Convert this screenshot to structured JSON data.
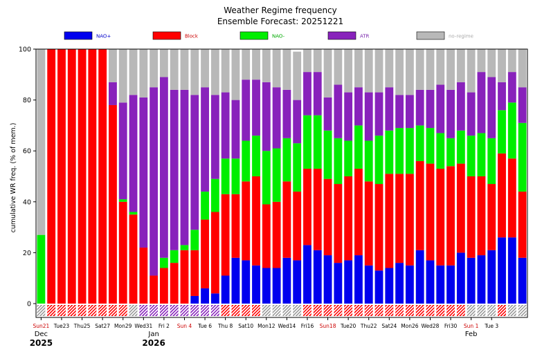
{
  "chart_data": {
    "type": "bar",
    "stacked": true,
    "title": "Weather Regime frequency",
    "subtitle": "Ensemble Forecast: 20251221",
    "ylabel": "cumulative WR freq. (% of mem.)",
    "xlabel": "",
    "ylim": [
      0,
      100
    ],
    "yticks": [
      0,
      20,
      40,
      60,
      80,
      100
    ],
    "legend_position": "top",
    "series": [
      {
        "name": "NAO+",
        "color": "#0000ee",
        "label_color": "#0000cc",
        "values": [
          0,
          0,
          0,
          0,
          0,
          0,
          0,
          0,
          0,
          0,
          0,
          0,
          0,
          0,
          0,
          3,
          6,
          4,
          11,
          18,
          17,
          15,
          14,
          14,
          18,
          17,
          23,
          21,
          19,
          16,
          17,
          19,
          15,
          13,
          14,
          16,
          15,
          21,
          17,
          15,
          15,
          20,
          18,
          19,
          21,
          26,
          26,
          18
        ]
      },
      {
        "name": "Block",
        "color": "#ff0000",
        "label_color": "#cc0000",
        "values": [
          0,
          100,
          100,
          100,
          100,
          100,
          100,
          78,
          40,
          35,
          22,
          11,
          14,
          16,
          21,
          18,
          27,
          32,
          32,
          25,
          31,
          35,
          25,
          26,
          30,
          27,
          30,
          32,
          30,
          31,
          33,
          34,
          33,
          34,
          37,
          35,
          36,
          35,
          38,
          38,
          39,
          35,
          32,
          31,
          26,
          33,
          31,
          26
        ]
      },
      {
        "name": "NAO-",
        "color": "#00ee00",
        "label_color": "#00aa00",
        "values": [
          27,
          0,
          0,
          0,
          0,
          0,
          0,
          0,
          1,
          1,
          0,
          0,
          4,
          5,
          2,
          8,
          11,
          13,
          14,
          14,
          16,
          16,
          21,
          21,
          17,
          19,
          21,
          21,
          19,
          18,
          14,
          17,
          16,
          19,
          17,
          18,
          18,
          14,
          14,
          14,
          11,
          13,
          16,
          17,
          18,
          17,
          22,
          27
        ]
      },
      {
        "name": "ATR",
        "color": "#8822bb",
        "label_color": "#7722aa",
        "values": [
          0,
          0,
          0,
          0,
          0,
          0,
          0,
          9,
          38,
          46,
          59,
          74,
          71,
          63,
          61,
          53,
          41,
          33,
          26,
          23,
          24,
          22,
          27,
          24,
          19,
          17,
          17,
          17,
          13,
          21,
          19,
          15,
          19,
          17,
          17,
          13,
          13,
          14,
          15,
          19,
          19,
          19,
          17,
          24,
          24,
          11,
          12,
          14
        ]
      },
      {
        "name": "no-regime",
        "color": "#b8b8b8",
        "label_color": "#aaaaaa",
        "values": [
          73,
          0,
          0,
          0,
          0,
          0,
          0,
          13,
          21,
          18,
          19,
          15,
          11,
          16,
          16,
          18,
          15,
          18,
          17,
          20,
          12,
          12,
          13,
          15,
          16,
          19,
          9,
          9,
          19,
          14,
          17,
          15,
          17,
          17,
          15,
          18,
          18,
          16,
          16,
          14,
          16,
          13,
          17,
          9,
          11,
          13,
          9,
          15
        ]
      }
    ],
    "day_bar_colors": [
      "#999999",
      "#ff0000",
      "#ff0000",
      "#ff0000",
      "#ff0000",
      "#ff0000",
      "#ff0000",
      "#ff0000",
      "#ff0000",
      "#999999",
      "#8822bb",
      "#8822bb",
      "#8822bb",
      "#8822bb",
      "#8822bb",
      "#8822bb",
      "#8822bb",
      "#8822bb",
      "#ff0000",
      "#ff0000",
      "#ff0000",
      "#ff0000",
      "#999999",
      "#999999",
      "#999999",
      "#999999",
      "#ff0000",
      "#ff0000",
      "#ff0000",
      "#ff0000",
      "#ff0000",
      "#ff0000",
      "#ff0000",
      "#ff0000",
      "#ff0000",
      "#ff0000",
      "#ff0000",
      "#ff0000",
      "#ff0000",
      "#ff0000",
      "#ff0000",
      "#ff0000",
      "#999999",
      "#999999",
      "#999999",
      "#ff0000",
      "#999999",
      "#999999"
    ],
    "x_ticks": [
      {
        "index": 0,
        "label": "Sun21",
        "color": "#cc0000"
      },
      {
        "index": 2,
        "label": "Tue23",
        "color": "#000000"
      },
      {
        "index": 4,
        "label": "Thu25",
        "color": "#000000"
      },
      {
        "index": 6,
        "label": "Sat27",
        "color": "#000000"
      },
      {
        "index": 8,
        "label": "Mon29",
        "color": "#000000"
      },
      {
        "index": 10,
        "label": "Wed31",
        "color": "#000000"
      },
      {
        "index": 12,
        "label": "Fri 2",
        "color": "#000000"
      },
      {
        "index": 14,
        "label": "Sun 4",
        "color": "#cc0000"
      },
      {
        "index": 16,
        "label": "Tue 6",
        "color": "#000000"
      },
      {
        "index": 18,
        "label": "Thu 8",
        "color": "#000000"
      },
      {
        "index": 20,
        "label": "Sat10",
        "color": "#000000"
      },
      {
        "index": 22,
        "label": "Mon12",
        "color": "#000000"
      },
      {
        "index": 24,
        "label": "Wed14",
        "color": "#000000"
      },
      {
        "index": 26,
        "label": "Fri16",
        "color": "#000000"
      },
      {
        "index": 28,
        "label": "Sun18",
        "color": "#cc0000"
      },
      {
        "index": 30,
        "label": "Tue20",
        "color": "#000000"
      },
      {
        "index": 32,
        "label": "Thu22",
        "color": "#000000"
      },
      {
        "index": 34,
        "label": "Sat24",
        "color": "#000000"
      },
      {
        "index": 36,
        "label": "Mon26",
        "color": "#000000"
      },
      {
        "index": 38,
        "label": "Wed28",
        "color": "#000000"
      },
      {
        "index": 40,
        "label": "Fri30",
        "color": "#000000"
      },
      {
        "index": 42,
        "label": "Sun 1",
        "color": "#cc0000"
      },
      {
        "index": 44,
        "label": "Tue 3",
        "color": "#000000"
      }
    ],
    "month_labels": [
      {
        "index": 0,
        "label": "Dec",
        "year": "2025"
      },
      {
        "index": 11,
        "label": "Jan",
        "year": "2026"
      },
      {
        "index": 42,
        "label": "Feb",
        "year": ""
      }
    ]
  }
}
